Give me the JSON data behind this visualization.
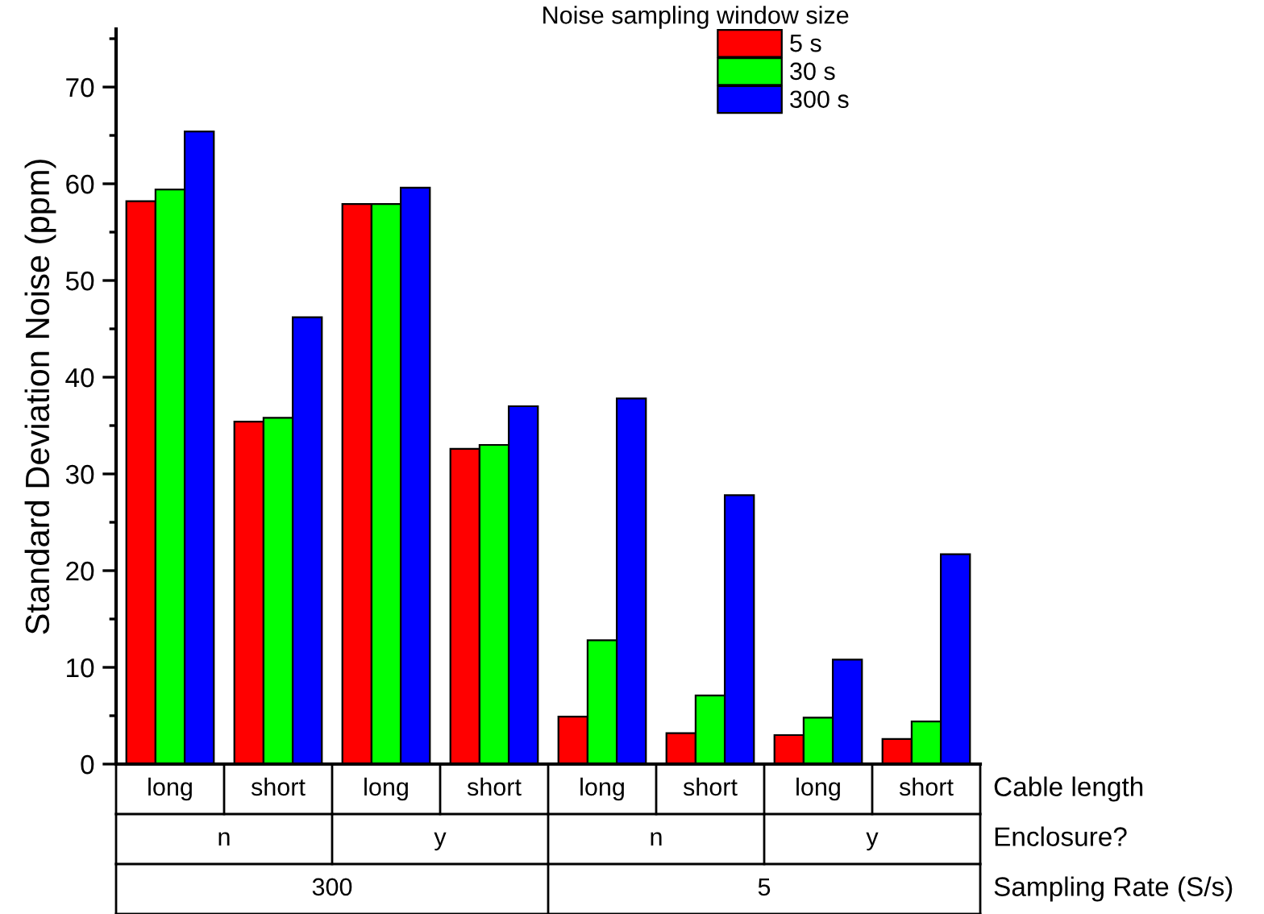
{
  "chart_data": {
    "type": "bar",
    "ylabel": "Standard Deviation Noise (ppm)",
    "legend_title": "Noise sampling window size",
    "categories": [
      "long",
      "short",
      "long",
      "short",
      "long",
      "short",
      "long",
      "short"
    ],
    "series": [
      {
        "name": "5 s",
        "color": "#ff0000",
        "values": [
          58.2,
          35.4,
          57.9,
          32.6,
          4.9,
          3.2,
          3.0,
          2.6
        ]
      },
      {
        "name": "30 s",
        "color": "#00ff00",
        "values": [
          59.4,
          35.8,
          57.9,
          33.0,
          12.8,
          7.1,
          4.8,
          4.4
        ]
      },
      {
        "name": "300 s",
        "color": "#0000ff",
        "values": [
          65.4,
          46.2,
          59.6,
          37.0,
          37.8,
          27.8,
          10.8,
          21.7
        ]
      }
    ],
    "ylim": [
      0,
      76
    ],
    "yticks": [
      0,
      {
        "value": 5,
        "label": null
      },
      10,
      {
        "value": 15,
        "label": null
      },
      20,
      {
        "value": 25,
        "label": null
      },
      30,
      {
        "value": 35,
        "label": null
      },
      40,
      {
        "value": 45,
        "label": null
      },
      50,
      {
        "value": 55,
        "label": null
      },
      60,
      {
        "value": 65,
        "label": null
      },
      70,
      {
        "value": 75,
        "label": null
      }
    ],
    "annotations": [
      "Cable length",
      "Enclosure?",
      "n",
      "y",
      "n",
      "y",
      "Sampling Rate (S/s)",
      "300",
      "5"
    ],
    "legend": "top right",
    "grid": false
  }
}
